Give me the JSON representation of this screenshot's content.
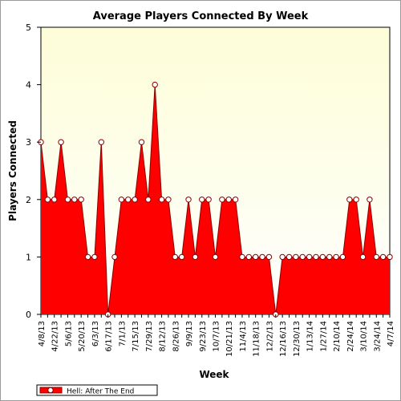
{
  "chart_data": {
    "type": "area",
    "title": "Average Players Connected By Week",
    "xlabel": "Week",
    "ylabel": "Players Connected",
    "ylim": [
      0,
      5
    ],
    "yticks": [
      0,
      1,
      2,
      3,
      4,
      5
    ],
    "grid": false,
    "legend_position": "bottom-left",
    "colors": {
      "fill": "#ff0000",
      "stroke": "#8b0000",
      "marker_fill": "#ffffff",
      "marker_stroke": "#8b0000",
      "plot_bg_top": "#fdfdd8",
      "plot_bg_bottom": "#ffffff"
    },
    "x_tick_labels": [
      "4/8/13",
      "4/22/13",
      "5/6/13",
      "5/20/13",
      "6/3/13",
      "6/17/13",
      "7/1/13",
      "7/15/13",
      "7/29/13",
      "8/12/13",
      "8/26/13",
      "9/9/13",
      "9/23/13",
      "10/7/13",
      "10/21/13",
      "11/4/13",
      "11/18/13",
      "12/2/13",
      "12/16/13",
      "12/30/13",
      "1/13/14",
      "1/27/14",
      "2/10/14",
      "2/24/14",
      "3/10/14",
      "3/24/14",
      "4/7/14"
    ],
    "x": [
      "4/8/13",
      "4/15/13",
      "4/22/13",
      "4/29/13",
      "5/6/13",
      "5/13/13",
      "5/20/13",
      "5/27/13",
      "6/3/13",
      "6/10/13",
      "6/17/13",
      "6/24/13",
      "7/1/13",
      "7/8/13",
      "7/15/13",
      "7/22/13",
      "7/29/13",
      "8/5/13",
      "8/12/13",
      "8/19/13",
      "8/26/13",
      "9/2/13",
      "9/9/13",
      "9/16/13",
      "9/23/13",
      "9/30/13",
      "10/7/13",
      "10/14/13",
      "10/21/13",
      "10/28/13",
      "11/4/13",
      "11/11/13",
      "11/18/13",
      "11/25/13",
      "12/2/13",
      "12/9/13",
      "12/16/13",
      "12/23/13",
      "12/30/13",
      "1/6/14",
      "1/13/14",
      "1/20/14",
      "1/27/14",
      "2/3/14",
      "2/10/14",
      "2/17/14",
      "2/24/14",
      "3/3/14",
      "3/10/14",
      "3/17/14",
      "3/24/14",
      "3/31/14",
      "4/7/14"
    ],
    "series": [
      {
        "name": "Hell: After The End",
        "values": [
          3,
          2,
          2,
          3,
          2,
          2,
          2,
          1,
          1,
          3,
          0,
          1,
          2,
          2,
          2,
          3,
          2,
          4,
          2,
          2,
          1,
          1,
          2,
          1,
          2,
          2,
          1,
          2,
          2,
          2,
          1,
          1,
          1,
          1,
          1,
          0,
          1,
          1,
          1,
          1,
          1,
          1,
          1,
          1,
          1,
          1,
          2,
          2,
          1,
          2,
          1,
          1,
          1
        ]
      }
    ]
  }
}
